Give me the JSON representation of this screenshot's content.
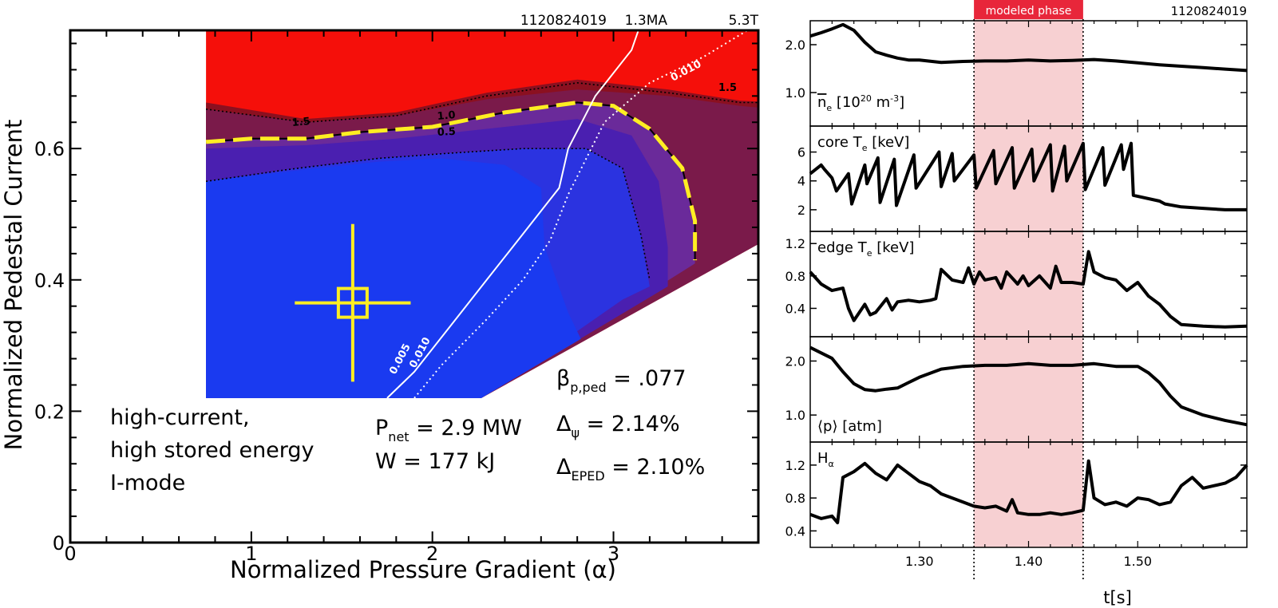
{
  "chart_data": [
    {
      "type": "heatmap",
      "panel": "stability-diagram",
      "header": {
        "shot": "1120824019",
        "current": "1.3MA",
        "field": "5.3T"
      },
      "xlabel": "Normalized Pressure Gradient (α)",
      "ylabel": "Normalized Pedestal Current",
      "xlim": [
        0,
        3.8
      ],
      "ylim": [
        0,
        0.78
      ],
      "xticks": [
        0,
        1,
        2,
        3
      ],
      "yticks": [
        0,
        0.2,
        0.4,
        0.6
      ],
      "ytick_labels": [
        "0",
        "0.2",
        "0.4",
        "0.6"
      ],
      "colors": {
        "stable_blue": "#1a3af0",
        "blue_mid": "#2b33e0",
        "purple_1": "#4a1fb0",
        "purple_2": "#6a2a9a",
        "maroon_1": "#7a1a4a",
        "maroon_2": "#8b1020",
        "red_top": "#f50f0a",
        "marginal_contour": "#ffee22",
        "marker": "#ffee22"
      },
      "contour_labels": [
        "1.5",
        "1.0",
        "0.5",
        "1.5",
        "0.010",
        "0.005",
        "0.010"
      ],
      "contours": [
        {
          "level": "1.0",
          "style": "solid-black-with-yellow-dash",
          "points": [
            [
              0.75,
              0.61
            ],
            [
              1.0,
              0.615
            ],
            [
              1.3,
              0.615
            ],
            [
              1.6,
              0.625
            ],
            [
              2.0,
              0.633
            ],
            [
              2.4,
              0.655
            ],
            [
              2.8,
              0.67
            ],
            [
              3.0,
              0.665
            ],
            [
              3.2,
              0.63
            ],
            [
              3.38,
              0.57
            ],
            [
              3.45,
              0.49
            ],
            [
              3.45,
              0.43
            ]
          ]
        },
        {
          "level": "0.5",
          "style": "dotted-black",
          "points": [
            [
              0.75,
              0.55
            ],
            [
              1.2,
              0.568
            ],
            [
              1.7,
              0.585
            ],
            [
              2.1,
              0.593
            ],
            [
              2.5,
              0.6
            ],
            [
              2.85,
              0.6
            ],
            [
              3.05,
              0.57
            ],
            [
              3.15,
              0.47
            ],
            [
              3.2,
              0.4
            ]
          ]
        },
        {
          "level": "1.5",
          "style": "dotted-black",
          "points": [
            [
              0.75,
              0.66
            ],
            [
              1.3,
              0.64
            ],
            [
              1.8,
              0.65
            ],
            [
              2.3,
              0.68
            ],
            [
              2.8,
              0.7
            ],
            [
              3.3,
              0.685
            ],
            [
              3.7,
              0.67
            ],
            [
              3.8,
              0.67
            ]
          ]
        },
        {
          "level": "0.005",
          "style": "solid-white",
          "points": [
            [
              1.75,
              0.22
            ],
            [
              1.9,
              0.26
            ],
            [
              2.1,
              0.33
            ],
            [
              2.3,
              0.4
            ],
            [
              2.5,
              0.47
            ],
            [
              2.7,
              0.54
            ],
            [
              2.75,
              0.6
            ],
            [
              2.9,
              0.68
            ],
            [
              3.1,
              0.75
            ],
            [
              3.15,
              0.79
            ]
          ]
        },
        {
          "level": "0.010",
          "style": "dotted-white",
          "points": [
            [
              1.9,
              0.22
            ],
            [
              2.05,
              0.27
            ],
            [
              2.3,
              0.34
            ],
            [
              2.5,
              0.4
            ],
            [
              2.65,
              0.46
            ],
            [
              2.75,
              0.53
            ],
            [
              2.95,
              0.64
            ],
            [
              3.2,
              0.7
            ],
            [
              3.5,
              0.74
            ],
            [
              3.8,
              0.79
            ]
          ]
        }
      ],
      "measurement": {
        "alpha": 1.56,
        "alpha_err": 0.32,
        "j": 0.365,
        "j_err": 0.12
      },
      "annotations": {
        "description": [
          "high-current,",
          "high stored energy",
          "I-mode"
        ],
        "P_net": {
          "sym": "P",
          "sub": "net",
          "value": " = 2.9 MW"
        },
        "W": "W = 177 kJ",
        "beta": {
          "sym": "β",
          "sub": "p,ped",
          "value": " = .077"
        },
        "delta_psi": {
          "sym": "Δ",
          "sub": "ψ",
          "value": " = 2.14%"
        },
        "delta_eped": {
          "sym": "Δ",
          "sub": "EPED",
          "value": " = 2.10%"
        }
      }
    },
    {
      "type": "line",
      "panel": "time-traces",
      "shot_label": "1120824019",
      "highlight": {
        "label": "modeled phase",
        "x": [
          1.35,
          1.45
        ],
        "color": "#f7d0d2"
      },
      "xlim": [
        1.2,
        1.6
      ],
      "xticks": [
        1.3,
        1.4,
        1.5
      ],
      "xtick_labels": [
        "1.30",
        "1.40",
        "1.50"
      ],
      "xlabel": "t[s]",
      "series": [
        {
          "label": {
            "pre": "n",
            "bar": true,
            "sub": "e",
            "post": " [10",
            "sup": "20",
            "post2": " m",
            "sup2": "-3",
            "post3": "]"
          },
          "ylim": [
            0.3,
            2.5
          ],
          "yticks": [
            1.0,
            2.0
          ],
          "ytick_labels": [
            "1.0",
            "2.0"
          ],
          "x": [
            1.2,
            1.21,
            1.22,
            1.23,
            1.24,
            1.25,
            1.26,
            1.27,
            1.28,
            1.29,
            1.3,
            1.32,
            1.34,
            1.36,
            1.38,
            1.4,
            1.42,
            1.44,
            1.46,
            1.48,
            1.5,
            1.52,
            1.54,
            1.56,
            1.58,
            1.6
          ],
          "y": [
            2.18,
            2.25,
            2.33,
            2.42,
            2.3,
            2.05,
            1.85,
            1.78,
            1.72,
            1.68,
            1.68,
            1.63,
            1.65,
            1.66,
            1.66,
            1.68,
            1.66,
            1.67,
            1.69,
            1.66,
            1.62,
            1.58,
            1.55,
            1.52,
            1.49,
            1.46
          ]
        },
        {
          "label": {
            "pre": "core T",
            "sub": "e",
            "post": " [keV]"
          },
          "ylim": [
            0.5,
            7.8
          ],
          "yticks": [
            2,
            4,
            6
          ],
          "ytick_labels": [
            "2",
            "4",
            "6"
          ],
          "x": [
            1.2,
            1.21,
            1.213,
            1.22,
            1.224,
            1.235,
            1.238,
            1.25,
            1.252,
            1.262,
            1.264,
            1.277,
            1.279,
            1.295,
            1.297,
            1.318,
            1.32,
            1.33,
            1.332,
            1.35,
            1.352,
            1.368,
            1.37,
            1.385,
            1.387,
            1.403,
            1.405,
            1.42,
            1.422,
            1.433,
            1.435,
            1.45,
            1.452,
            1.468,
            1.47,
            1.485,
            1.487,
            1.494,
            1.496,
            1.52,
            1.525,
            1.54,
            1.56,
            1.58,
            1.6
          ],
          "y": [
            4.5,
            5.1,
            4.8,
            4.2,
            3.3,
            4.5,
            2.4,
            5.1,
            3.8,
            5.6,
            2.5,
            5.5,
            2.3,
            5.8,
            3.5,
            6.0,
            3.6,
            5.9,
            4.0,
            5.8,
            3.5,
            6.1,
            3.8,
            6.3,
            3.5,
            6.2,
            4.0,
            6.5,
            3.3,
            6.4,
            4.0,
            6.6,
            3.4,
            6.3,
            3.7,
            6.5,
            4.8,
            6.6,
            3.0,
            2.6,
            2.4,
            2.2,
            2.1,
            2.0,
            2.0
          ]
        },
        {
          "label": {
            "pre": "edge T",
            "sub": "e",
            "post": " [keV]"
          },
          "ylim": [
            0.05,
            1.35
          ],
          "yticks": [
            0.4,
            0.8,
            1.2
          ],
          "ytick_labels": [
            "0.4",
            "0.8",
            "1.2"
          ],
          "x": [
            1.2,
            1.21,
            1.22,
            1.23,
            1.235,
            1.24,
            1.25,
            1.255,
            1.26,
            1.27,
            1.275,
            1.28,
            1.29,
            1.3,
            1.31,
            1.315,
            1.32,
            1.33,
            1.34,
            1.345,
            1.35,
            1.355,
            1.36,
            1.37,
            1.375,
            1.38,
            1.39,
            1.395,
            1.4,
            1.41,
            1.42,
            1.425,
            1.43,
            1.44,
            1.45,
            1.455,
            1.46,
            1.47,
            1.48,
            1.49,
            1.5,
            1.51,
            1.52,
            1.53,
            1.54,
            1.56,
            1.58,
            1.6
          ],
          "y": [
            0.85,
            0.7,
            0.62,
            0.65,
            0.4,
            0.25,
            0.45,
            0.32,
            0.35,
            0.52,
            0.38,
            0.48,
            0.5,
            0.48,
            0.5,
            0.52,
            0.88,
            0.75,
            0.72,
            0.9,
            0.7,
            0.85,
            0.75,
            0.78,
            0.65,
            0.85,
            0.7,
            0.8,
            0.68,
            0.8,
            0.65,
            0.92,
            0.72,
            0.72,
            0.7,
            1.1,
            0.85,
            0.78,
            0.75,
            0.62,
            0.72,
            0.55,
            0.45,
            0.3,
            0.2,
            0.18,
            0.17,
            0.18
          ]
        },
        {
          "label": {
            "pre": "⟨p⟩ [atm]"
          },
          "ylim": [
            0.5,
            2.45
          ],
          "yticks": [
            1.0,
            2.0
          ],
          "ytick_labels": [
            "1.0",
            "2.0"
          ],
          "x": [
            1.2,
            1.21,
            1.22,
            1.23,
            1.24,
            1.25,
            1.26,
            1.27,
            1.28,
            1.29,
            1.3,
            1.32,
            1.34,
            1.36,
            1.38,
            1.4,
            1.42,
            1.44,
            1.46,
            1.48,
            1.5,
            1.51,
            1.52,
            1.53,
            1.54,
            1.56,
            1.58,
            1.6
          ],
          "y": [
            2.25,
            2.15,
            2.05,
            1.8,
            1.58,
            1.47,
            1.45,
            1.48,
            1.5,
            1.6,
            1.7,
            1.85,
            1.9,
            1.92,
            1.92,
            1.95,
            1.92,
            1.92,
            1.95,
            1.9,
            1.9,
            1.78,
            1.6,
            1.35,
            1.15,
            1.0,
            0.9,
            0.82
          ]
        },
        {
          "label": {
            "pre": "H",
            "sub": "α"
          },
          "ylim": [
            0.2,
            1.48
          ],
          "yticks": [
            0.4,
            0.8,
            1.2
          ],
          "ytick_labels": [
            "0.4",
            "0.8",
            "1.2"
          ],
          "x": [
            1.2,
            1.21,
            1.22,
            1.225,
            1.23,
            1.24,
            1.25,
            1.26,
            1.27,
            1.28,
            1.29,
            1.3,
            1.31,
            1.32,
            1.33,
            1.34,
            1.35,
            1.36,
            1.37,
            1.38,
            1.385,
            1.39,
            1.4,
            1.41,
            1.42,
            1.43,
            1.44,
            1.45,
            1.455,
            1.46,
            1.47,
            1.48,
            1.49,
            1.5,
            1.51,
            1.52,
            1.53,
            1.54,
            1.55,
            1.56,
            1.57,
            1.58,
            1.59,
            1.6
          ],
          "y": [
            0.6,
            0.55,
            0.58,
            0.5,
            1.05,
            1.12,
            1.22,
            1.1,
            1.02,
            1.2,
            1.1,
            1.0,
            0.95,
            0.85,
            0.8,
            0.75,
            0.7,
            0.68,
            0.7,
            0.64,
            0.78,
            0.62,
            0.6,
            0.6,
            0.62,
            0.6,
            0.62,
            0.65,
            1.25,
            0.8,
            0.72,
            0.75,
            0.7,
            0.8,
            0.78,
            0.72,
            0.75,
            0.95,
            1.05,
            0.92,
            0.95,
            0.98,
            1.05,
            1.2
          ]
        }
      ]
    }
  ]
}
